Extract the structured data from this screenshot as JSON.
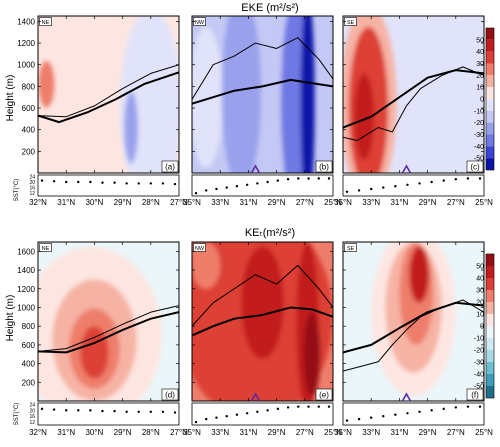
{
  "colors": {
    "pos": [
      "#fde6e1",
      "#f6b3a4",
      "#ee7e6b",
      "#dd3f34",
      "#c21a1e",
      "#960f14"
    ],
    "neg": [
      "#e1e3fa",
      "#c3c8f4",
      "#9aa1ec",
      "#6f78e3",
      "#3a44d6",
      "#0a14a8"
    ],
    "neg_cyan": [
      "#eaf6fa",
      "#cfeaf2",
      "#a8d9e6",
      "#6fbfd3",
      "#3f9fba",
      "#1f6f8c"
    ],
    "line": "#000000",
    "marker": "#5b2aa0"
  },
  "chart_data": [
    {
      "type": "heatmap",
      "id": "row1",
      "row_title": "EKE (m²/s²)",
      "ylabel": "Height (m)",
      "ylim": [
        0,
        1450
      ],
      "yticks": [
        "200",
        "400",
        "600",
        "800",
        "1000",
        "1200",
        "1400"
      ],
      "sst_label": "SST(°C)",
      "sst_ticks": [
        "12",
        "16",
        "20",
        "24"
      ],
      "colorbar": {
        "ticks": [
          "50",
          "40",
          "30",
          "20",
          "10",
          "0",
          "-10",
          "-20",
          "-30",
          "-40",
          "-50"
        ],
        "scheme": "blue"
      },
      "panels": [
        {
          "id": "a",
          "region": "NE",
          "letter": "(a)",
          "xticks": [
            "32°N",
            "31°N",
            "30°N",
            "29°N",
            "28°N",
            "27°N"
          ],
          "background": "#fde6e1",
          "blobs": [
            {
              "cx": 0.0,
              "cy": 620,
              "rx": 0.45,
              "ry": 1000,
              "level": 1
            },
            {
              "cx": 0.8,
              "cy": 620,
              "rx": 0.22,
              "ry": 900,
              "level": -1
            },
            {
              "cx": 0.06,
              "cy": 820,
              "rx": 0.06,
              "ry": 220,
              "level": 3
            },
            {
              "cx": 0.66,
              "cy": 420,
              "rx": 0.05,
              "ry": 330,
              "level": -3
            }
          ],
          "lines": [
            {
              "x": [
                0,
                0.15,
                0.35,
                0.55,
                0.75,
                1.0
              ],
              "y": [
                530,
                470,
                560,
                680,
                820,
                930
              ],
              "width": 2
            },
            {
              "x": [
                0,
                0.2,
                0.4,
                0.6,
                0.8,
                1.0
              ],
              "y": [
                530,
                520,
                620,
                780,
                920,
                1000
              ],
              "width": 1
            }
          ],
          "sst": [
            21,
            20.5,
            20,
            20,
            20,
            19.5,
            19.5,
            19,
            19,
            19,
            19,
            18.5
          ]
        },
        {
          "id": "b",
          "region": "NW",
          "letter": "(b)",
          "xticks": [
            "35°N",
            "33°N",
            "31°N",
            "29°N",
            "27°N",
            "25°N"
          ],
          "background": "#c3c8f4",
          "blobs": [
            {
              "cx": 0.1,
              "cy": 700,
              "rx": 0.12,
              "ry": 650,
              "level": -1
            },
            {
              "cx": 0.35,
              "cy": 750,
              "rx": 0.14,
              "ry": 900,
              "level": -3
            },
            {
              "cx": 0.62,
              "cy": 550,
              "rx": 0.09,
              "ry": 500,
              "level": -2
            },
            {
              "cx": 0.75,
              "cy": 650,
              "rx": 0.12,
              "ry": 1000,
              "level": -4
            },
            {
              "cx": 0.82,
              "cy": 650,
              "rx": 0.05,
              "ry": 1000,
              "level": -6
            }
          ],
          "lines": [
            {
              "x": [
                0,
                0.15,
                0.3,
                0.5,
                0.7,
                0.85,
                1.0
              ],
              "y": [
                640,
                700,
                760,
                800,
                860,
                830,
                800
              ],
              "width": 2
            },
            {
              "x": [
                0,
                0.15,
                0.3,
                0.45,
                0.6,
                0.75,
                0.9,
                1.0
              ],
              "y": [
                680,
                1000,
                1080,
                1200,
                1150,
                1250,
                1050,
                870
              ],
              "width": 1
            }
          ],
          "marker_x": 0.45,
          "sst": [
            12,
            14,
            15,
            16,
            17,
            18,
            19,
            20,
            21,
            22,
            22.5,
            22.5,
            22.5,
            22.5
          ]
        },
        {
          "id": "c",
          "region": "SE",
          "letter": "(c)",
          "xticks": [
            "35°N",
            "33°N",
            "31°N",
            "29°N",
            "27°N",
            "25°N"
          ],
          "background": "#e1e3fa",
          "blobs": [
            {
              "cx": 0.18,
              "cy": 650,
              "rx": 0.2,
              "ry": 900,
              "level": 2
            },
            {
              "cx": 0.18,
              "cy": 600,
              "rx": 0.14,
              "ry": 750,
              "level": 4
            },
            {
              "cx": 0.15,
              "cy": 520,
              "rx": 0.07,
              "ry": 400,
              "level": 5
            }
          ],
          "lines": [
            {
              "x": [
                0,
                0.2,
                0.4,
                0.6,
                0.8,
                1.0
              ],
              "y": [
                420,
                520,
                700,
                880,
                950,
                920
              ],
              "width": 2
            },
            {
              "x": [
                0,
                0.1,
                0.25,
                0.35,
                0.45,
                0.55,
                0.7,
                0.85,
                1.0
              ],
              "y": [
                330,
                300,
                420,
                380,
                620,
                780,
                900,
                980,
                900
              ],
              "width": 1
            }
          ],
          "marker_x": 0.45,
          "sst": [
            13,
            14,
            15,
            16,
            17,
            18,
            19,
            20,
            21,
            22,
            22.5,
            22.5
          ]
        }
      ]
    },
    {
      "type": "heatmap",
      "id": "row2",
      "row_title": "KEₜ(m²/s²)",
      "ylabel": "Height (m)",
      "ylim": [
        0,
        1700
      ],
      "yticks": [
        "200",
        "400",
        "600",
        "800",
        "1000",
        "1200",
        "1400",
        "1600"
      ],
      "sst_label": "SST(°C)",
      "sst_ticks": [
        "12",
        "16",
        "20",
        "24"
      ],
      "colorbar": {
        "ticks": [
          "50",
          "40",
          "30",
          "20",
          "10",
          "0",
          "-10",
          "-20",
          "-30",
          "-40",
          "-50"
        ],
        "scheme": "cyan"
      },
      "panels": [
        {
          "id": "d",
          "region": "NE",
          "letter": "(d)",
          "xticks": [
            "32°N",
            "31°N",
            "30°N",
            "29°N",
            "28°N",
            "27°N"
          ],
          "background": "#eaf6fa",
          "blobs": [
            {
              "cx": 0.38,
              "cy": 700,
              "rx": 0.5,
              "ry": 950,
              "level": 1
            },
            {
              "cx": 0.4,
              "cy": 650,
              "rx": 0.3,
              "ry": 650,
              "level": 2
            },
            {
              "cx": 0.4,
              "cy": 560,
              "rx": 0.18,
              "ry": 430,
              "level": 3
            },
            {
              "cx": 0.4,
              "cy": 520,
              "rx": 0.1,
              "ry": 280,
              "level": 4
            }
          ],
          "lines": [
            {
              "x": [
                0,
                0.2,
                0.4,
                0.6,
                0.8,
                1.0
              ],
              "y": [
                530,
                520,
                620,
                760,
                880,
                950
              ],
              "width": 2
            },
            {
              "x": [
                0,
                0.2,
                0.4,
                0.6,
                0.8,
                1.0
              ],
              "y": [
                530,
                560,
                680,
                820,
                950,
                1020
              ],
              "width": 1
            }
          ],
          "sst": [
            21,
            20.5,
            20,
            20,
            20,
            19.5,
            19.5,
            19,
            19,
            19,
            19,
            18.5
          ]
        },
        {
          "id": "e",
          "region": "NW",
          "letter": "(e)",
          "xticks": [
            "35°N",
            "33°N",
            "31°N",
            "29°N",
            "27°N",
            "25°N"
          ],
          "background": "#ee7e6b",
          "blobs": [
            {
              "cx": 0.45,
              "cy": 900,
              "rx": 0.55,
              "ry": 1100,
              "level": 4
            },
            {
              "cx": 0.2,
              "cy": 700,
              "rx": 0.12,
              "ry": 700,
              "level": 4
            },
            {
              "cx": 0.5,
              "cy": 1050,
              "rx": 0.15,
              "ry": 600,
              "level": 5
            },
            {
              "cx": 0.82,
              "cy": 800,
              "rx": 0.08,
              "ry": 900,
              "level": 5
            },
            {
              "cx": 0.85,
              "cy": 500,
              "rx": 0.06,
              "ry": 450,
              "level": 6
            },
            {
              "cx": 0.1,
              "cy": 1450,
              "rx": 0.1,
              "ry": 250,
              "level": 3
            }
          ],
          "lines": [
            {
              "x": [
                0,
                0.15,
                0.3,
                0.5,
                0.7,
                0.85,
                1.0
              ],
              "y": [
                700,
                800,
                880,
                920,
                1000,
                980,
                900
              ],
              "width": 2
            },
            {
              "x": [
                0,
                0.15,
                0.3,
                0.45,
                0.6,
                0.75,
                0.9,
                1.0
              ],
              "y": [
                800,
                1050,
                1200,
                1350,
                1250,
                1450,
                1200,
                1000
              ],
              "width": 1
            }
          ],
          "marker_x": 0.45,
          "sst": [
            12,
            14,
            15,
            16,
            17,
            18,
            19,
            20,
            21,
            22,
            22.5,
            22.5,
            22.5,
            22.5
          ]
        },
        {
          "id": "f",
          "region": "SE",
          "letter": "(f)",
          "xticks": [
            "35°N",
            "33°N",
            "31°N",
            "29°N",
            "27°N",
            "25°N"
          ],
          "background": "#eaf6fa",
          "blobs": [
            {
              "cx": 0.5,
              "cy": 950,
              "rx": 0.3,
              "ry": 900,
              "level": 1
            },
            {
              "cx": 0.5,
              "cy": 1000,
              "rx": 0.2,
              "ry": 700,
              "level": 2
            },
            {
              "cx": 0.52,
              "cy": 1150,
              "rx": 0.12,
              "ry": 550,
              "level": 3
            },
            {
              "cx": 0.54,
              "cy": 1350,
              "rx": 0.07,
              "ry": 300,
              "level": 5
            }
          ],
          "lines": [
            {
              "x": [
                0,
                0.2,
                0.4,
                0.6,
                0.8,
                1.0
              ],
              "y": [
                520,
                600,
                780,
                950,
                1050,
                1020
              ],
              "width": 2
            },
            {
              "x": [
                0,
                0.1,
                0.25,
                0.35,
                0.45,
                0.55,
                0.7,
                0.85,
                1.0
              ],
              "y": [
                320,
                360,
                420,
                600,
                760,
                900,
                1000,
                1080,
                950
              ],
              "width": 1
            }
          ],
          "marker_x": 0.45,
          "sst": [
            13,
            14,
            15,
            16,
            17,
            18,
            19,
            20,
            21,
            22,
            22.5,
            22.5
          ]
        }
      ]
    }
  ]
}
